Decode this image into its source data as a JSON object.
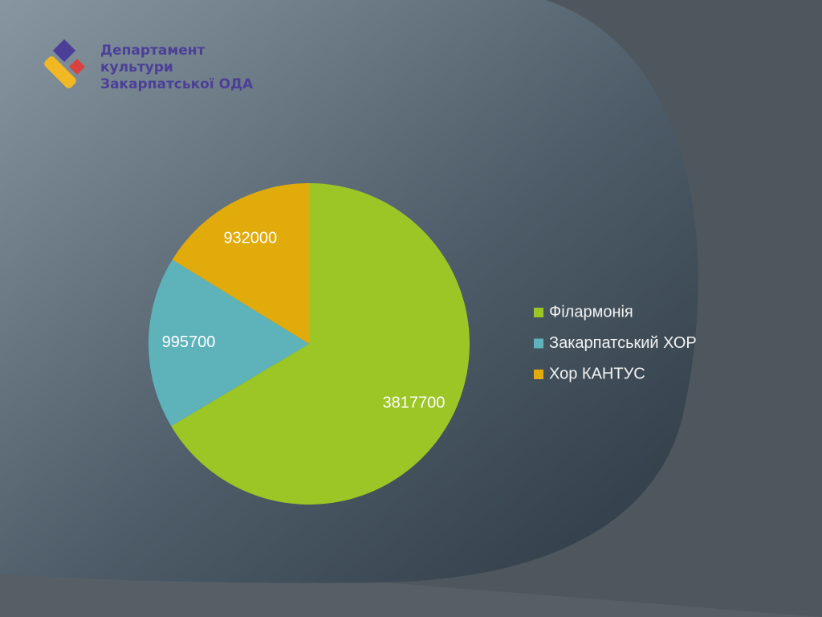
{
  "logo_lines": [
    "Департамент",
    "культури",
    "Закарпатської ОДА"
  ],
  "chart_data": {
    "type": "pie",
    "categories": [
      "Філармонія",
      "Закарпатський ХОР",
      "Хор КАНТУС"
    ],
    "values": [
      3817700,
      995700,
      932000
    ],
    "colors": [
      "#9bc625",
      "#5eb3bb",
      "#e0ab0b"
    ],
    "legend": "right"
  }
}
